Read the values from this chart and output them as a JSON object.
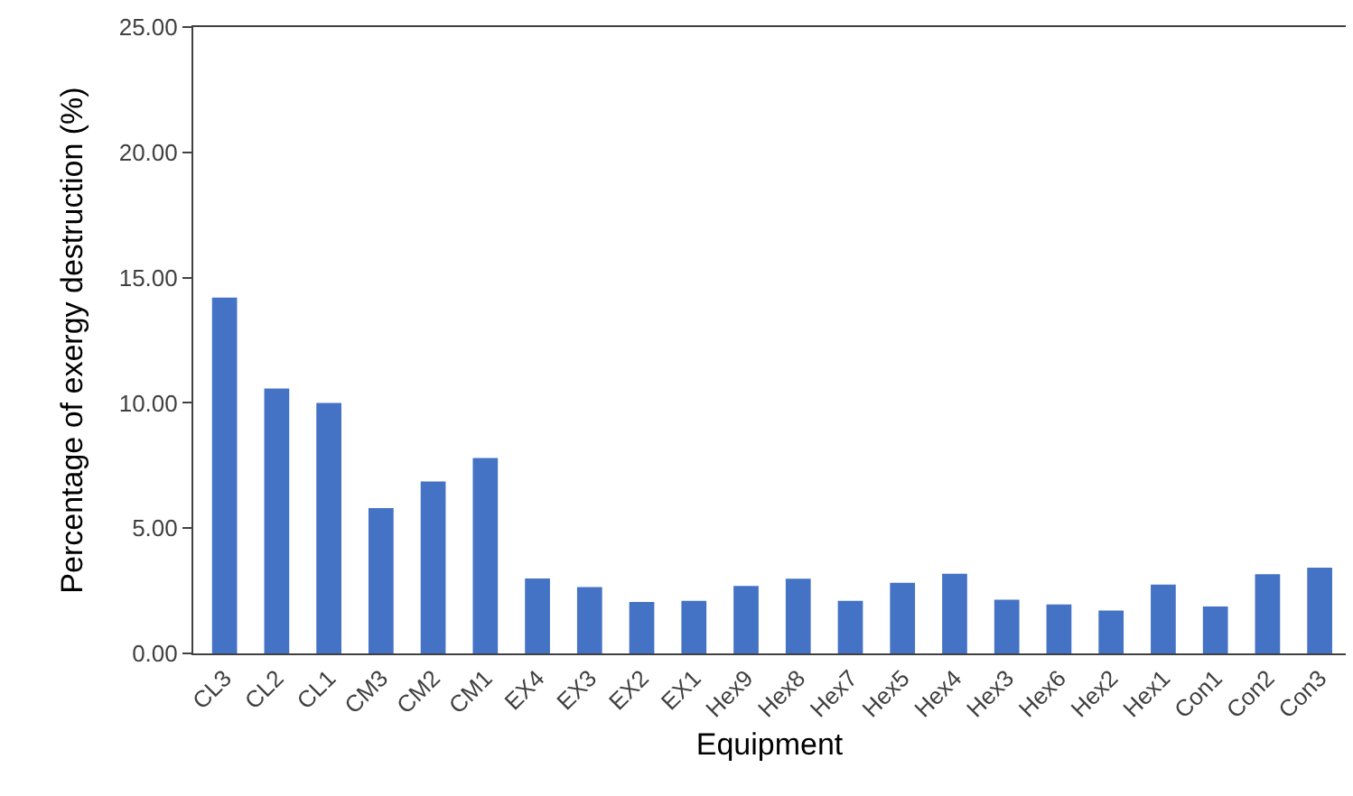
{
  "chart_data": {
    "type": "bar",
    "xlabel": "Equipment",
    "ylabel": "Percentage of exergy destruction (%)",
    "categories": [
      "CL3",
      "CL2",
      "CL1",
      "CM3",
      "CM2",
      "CM1",
      "EX4",
      "EX3",
      "EX2",
      "EX1",
      "Hex9",
      "Hex8",
      "Hex7",
      "Hex5",
      "Hex4",
      "Hex3",
      "Hex6",
      "Hex2",
      "Hex1",
      "Con1",
      "Con2",
      "Con3"
    ],
    "values": [
      14.2,
      10.57,
      10.0,
      5.8,
      6.86,
      7.8,
      2.99,
      2.65,
      2.05,
      2.1,
      2.69,
      2.98,
      2.1,
      2.82,
      3.18,
      2.14,
      1.95,
      1.71,
      2.75,
      1.87,
      3.16,
      3.42
    ],
    "color": "#4472c4",
    "ylim": [
      0,
      25
    ],
    "yticks": [
      {
        "value": 0,
        "label": "0.00"
      },
      {
        "value": 5,
        "label": "5.00"
      },
      {
        "value": 10,
        "label": "10.00"
      },
      {
        "value": 15,
        "label": "15.00"
      },
      {
        "value": 20,
        "label": "20.00"
      },
      {
        "value": 25,
        "label": "25.00"
      }
    ]
  }
}
